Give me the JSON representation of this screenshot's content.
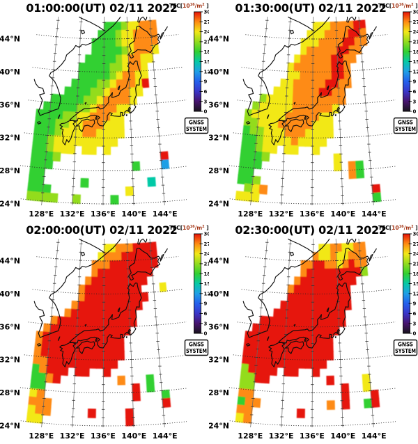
{
  "figure": {
    "description": "GNSS TEC maps over Japan, four epochs on 02/11 2022",
    "date": "02/11 2022",
    "background": "#ffffff"
  },
  "axes": {
    "lat_labels": [
      "44°N",
      "40°N",
      "36°N",
      "32°N",
      "28°N",
      "24°N"
    ],
    "lat_values": [
      44,
      40,
      36,
      32,
      28,
      24
    ],
    "lon_labels": [
      "128°E",
      "132°E",
      "136°E",
      "140°E",
      "144°E"
    ],
    "lon_values": [
      128,
      132,
      136,
      140,
      144
    ]
  },
  "colorbar": {
    "title_prefix": "TEC[",
    "title_base": "10",
    "title_exponent": "16",
    "title_mid": "/m",
    "title_exponent2": "2",
    "title_suffix": " ]",
    "unit_color": "#a23414",
    "tick_values": [
      30,
      27,
      24,
      21,
      18,
      15,
      12,
      9,
      6,
      3,
      0
    ],
    "min": 0,
    "max": 30,
    "anchors": [
      [
        0,
        "#18141c"
      ],
      [
        3,
        "#47136e"
      ],
      [
        6,
        "#3a35c8"
      ],
      [
        9,
        "#2460ec"
      ],
      [
        12,
        "#1f9fe6"
      ],
      [
        15,
        "#06c9a6"
      ],
      [
        18,
        "#31d032"
      ],
      [
        21,
        "#93dc1e"
      ],
      [
        24,
        "#f2e818"
      ],
      [
        27,
        "#fe8b12"
      ],
      [
        30,
        "#e61308"
      ]
    ]
  },
  "badge": {
    "line1": "GNSS",
    "line2": "SYSTEM"
  },
  "chart_data": {
    "type": "heatmap",
    "projection": "conic, Japan region",
    "lon_range": [
      126,
      146
    ],
    "lat_range": [
      23,
      47
    ],
    "grid_cell_deg": 1,
    "grid_origin": {
      "lon_first_col": 126.5,
      "lat_first_row": 45.5
    },
    "value_unit": "TEC [10^16 /m^2]",
    "value_range": [
      0,
      30
    ],
    "codes": {
      "1": 3,
      "2": 6,
      "3": 9,
      "4": 12,
      "5": 15,
      "6": 18,
      "7": 21,
      "8": 24,
      "9": 27,
      "X": 30
    },
    "panels": [
      {
        "title": "01:00:00(UT) 02/11 2022",
        "time": "01:00:00 UT",
        "grid": [
          "..........666788999.",
          ".........6667889999.",
          "........66667889999.",
          "........66666789998.",
          ".......66666789988..",
          "......66666778998...",
          "......66666789988...",
          ".....66667789998X...",
          "....666677899988....",
          "..6666677899998.....",
          ".6666677899988......",
          "6666778899988.......",
          "6667788999888.......",
          "6667888998888.......",
          "667888888888........",
          "667888.88.8.........",
          "6667..............X.",
          "666...........6...4.",
          "66..................",
          "66.....6........5...",
          "666..........8......",
          "7777..7....6........"
        ]
      },
      {
        "title": "01:30:00(UT) 02/11 2022",
        "time": "01:30:00 UT",
        "grid": [
          "..........8889999XX.",
          ".........8889999XX9.",
          "........8889999XX99.",
          "........899999XX99..",
          ".......899999XX99...",
          "......8999999XX9....",
          "......8899999XX9....",
          ".....8899999XX99....",
          "....8889999XX99.....",
          "..7888899999999.....",
          ".7888889999998......",
          "7888889999988.......",
          "7788899999888.......",
          "6778889998888.......",
          "667888898888........",
          "66788.88..8.........",
          "6667.........8......",
          "666..........8.96...",
          "66.............96...",
          "667.................",
          ".789..............X.",
          "888...............6."
        ]
      },
      {
        "title": "02:00:00(UT) 02/11 2022",
        "time": "02:00:00 UT",
        "grid": [
          "..........88999XXXX.",
          ".........8999XXXXXX.",
          "........999XXXXXXXX.",
          "........9XXXXXXXXX..",
          ".......9XXXXXXXXX...",
          "......9XXXXXXXXX...8",
          "......9XXXXXXXXXX...",
          ".....9XXXXXXXXXX....",
          "....9XXXXXXXXXX.....",
          "..9XXXXXXXXXXXX.....",
          ".9XXXXXXXXXXXX......",
          "9XXXXXXXXXXXX.......",
          "9XXXXXXXXXXXX.......",
          "9XXXXXXXXXXXX.......",
          "99XXXXXXXXXX........",
          "69XXX.XX..X.........",
          "669X........9...6...",
          "66............X.6...",
          "89............X...6.",
          "999...............X.",
          "899.....X....X......",
          "88...........X......"
        ]
      },
      {
        "title": "02:30:00(UT) 02/11 2022",
        "time": "02:30:00 UT",
        "grid": [
          "...........88998899.",
          "..........988988999.",
          "........99XX9989X99.",
          "........9XXXXXXXXX7.",
          ".......9XXXXXXXXX...",
          "......9XXXXXXXXX....",
          "......XXXXXXXXXX....",
          ".....XXXXXXXXXXX....",
          "....XXXXXXXXXXX.....",
          "..XXXXXXXXXXXXX.....",
          ".XXXXXXXXXXXXX......",
          "XXXXXXXXXXXXX.......",
          "XXXXXXXXXXXXX.......",
          "XXXXXXXXXXXXX.......",
          "XXXXXXXXXXXX........",
          "7XXXX.XX..X.........",
          "77XX........X....8..",
          "77............X..8..",
          "99............X...X.",
          "699.........9.X..6X.",
          "99......X...........",
          "89.................."
        ]
      }
    ]
  }
}
